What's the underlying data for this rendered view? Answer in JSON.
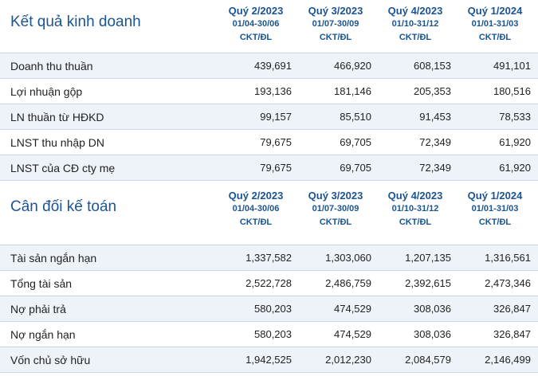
{
  "business": {
    "title": "Kết quả kinh doanh",
    "periods": [
      {
        "label": "Quý 2/2023",
        "range": "01/04-30/06",
        "unit": "CKT/ĐL"
      },
      {
        "label": "Quý 3/2023",
        "range": "01/07-30/09",
        "unit": "CKT/ĐL"
      },
      {
        "label": "Quý 4/2023",
        "range": "01/10-31/12",
        "unit": "CKT/ĐL"
      },
      {
        "label": "Quý 1/2024",
        "range": "01/01-31/03",
        "unit": "CKT/ĐL"
      }
    ],
    "rows": [
      {
        "label": "Doanh thu thuần",
        "values": [
          "439,691",
          "466,920",
          "608,153",
          "491,101"
        ]
      },
      {
        "label": "Lợi nhuận gộp",
        "values": [
          "193,136",
          "181,146",
          "205,353",
          "180,516"
        ]
      },
      {
        "label": "LN thuần từ HĐKD",
        "values": [
          "99,157",
          "85,510",
          "91,453",
          "78,533"
        ]
      },
      {
        "label": "LNST thu nhập DN",
        "values": [
          "79,675",
          "69,705",
          "72,349",
          "61,920"
        ]
      },
      {
        "label": "LNST của CĐ cty mẹ",
        "values": [
          "79,675",
          "69,705",
          "72,349",
          "61,920"
        ]
      }
    ]
  },
  "balance": {
    "title": "Cân đối kế toán",
    "periods": [
      {
        "label": "Quý 2/2023",
        "range": "01/04-30/06",
        "unit": "CKT/ĐL"
      },
      {
        "label": "Quý 3/2023",
        "range": "01/07-30/09",
        "unit": "CKT/ĐL"
      },
      {
        "label": "Quý 4/2023",
        "range": "01/10-31/12",
        "unit": "CKT/ĐL"
      },
      {
        "label": "Quý 1/2024",
        "range": "01/01-31/03",
        "unit": "CKT/ĐL"
      }
    ],
    "rows": [
      {
        "label": "Tài sản ngắn hạn",
        "values": [
          "1,337,582",
          "1,303,060",
          "1,207,135",
          "1,316,561"
        ]
      },
      {
        "label": "Tổng tài sản",
        "values": [
          "2,522,728",
          "2,486,759",
          "2,392,615",
          "2,473,346"
        ]
      },
      {
        "label": "Nợ phải trả",
        "values": [
          "580,203",
          "474,529",
          "308,036",
          "326,847"
        ]
      },
      {
        "label": "Nợ ngắn hạn",
        "values": [
          "580,203",
          "474,529",
          "308,036",
          "326,847"
        ]
      },
      {
        "label": "Vốn chủ sở hữu",
        "values": [
          "1,942,525",
          "2,012,230",
          "2,084,579",
          "2,146,499"
        ]
      }
    ]
  },
  "colors": {
    "heading": "#1a5493",
    "row_shade": "#eef3fa",
    "divider": "#c9d6e6"
  }
}
